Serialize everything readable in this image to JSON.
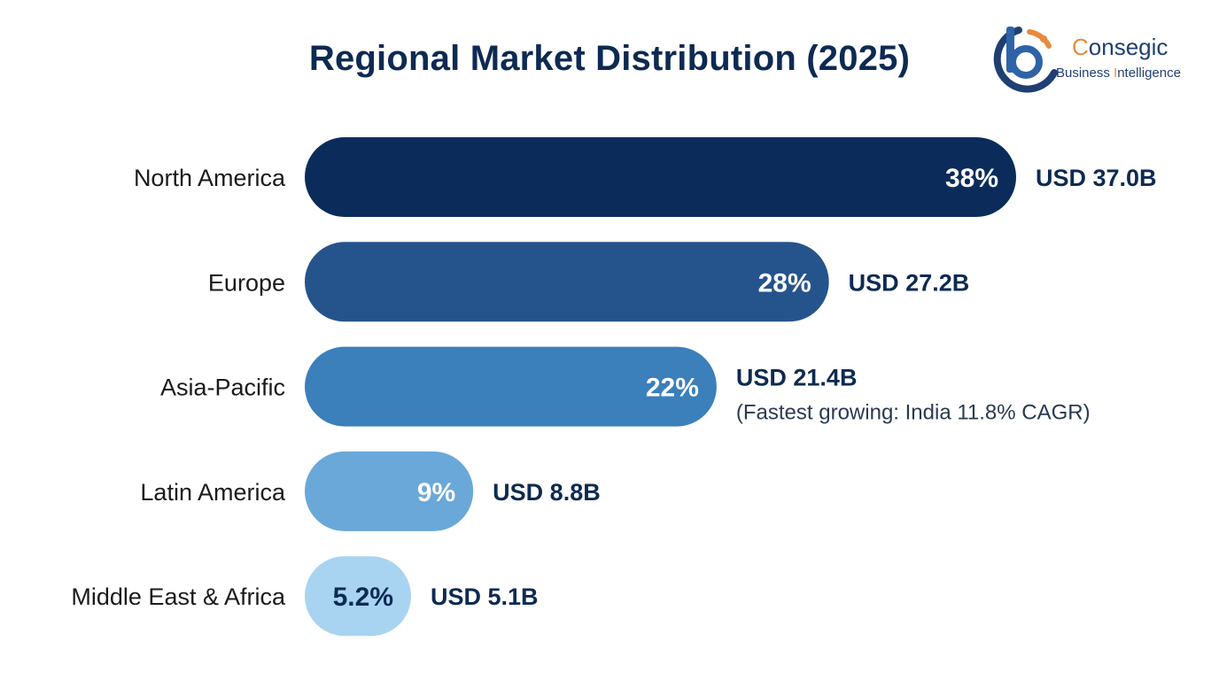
{
  "title": "Regional Market Distribution (2025)",
  "logo": {
    "name_first_letter": "C",
    "name_rest": "onsegic",
    "tagline_part1": "Business ",
    "tagline_letter": "I",
    "tagline_part2": "ntelligence"
  },
  "chart_data": {
    "type": "bar",
    "orientation": "horizontal",
    "title": "Regional Market Distribution (2025)",
    "categories": [
      "North America",
      "Europe",
      "Asia-Pacific",
      "Latin America",
      "Middle East & Africa"
    ],
    "series": [
      {
        "values": [
          38,
          28,
          22,
          9,
          5.2
        ]
      }
    ],
    "percent_labels": [
      "38%",
      "28%",
      "22%",
      "9%",
      "5.2%"
    ],
    "value_labels": [
      "USD 37.0B",
      "USD 27.2B",
      "USD 21.4B",
      "USD 8.8B",
      "USD 5.1B"
    ],
    "value_usd_billion": [
      37.0,
      27.2,
      21.4,
      8.8,
      5.1
    ],
    "annotations": [
      "",
      "",
      "(Fastest growing: India 11.8% CAGR)",
      "",
      ""
    ],
    "bar_colors": [
      "#0b2c5b",
      "#25548c",
      "#3b7fbb",
      "#6aa8d9",
      "#a8d4f1"
    ],
    "percent_label_colors": [
      "#ffffff",
      "#ffffff",
      "#ffffff",
      "#ffffff",
      "#0d2a52"
    ],
    "xlim": [
      0,
      38
    ],
    "grid": false,
    "legend": "none"
  }
}
